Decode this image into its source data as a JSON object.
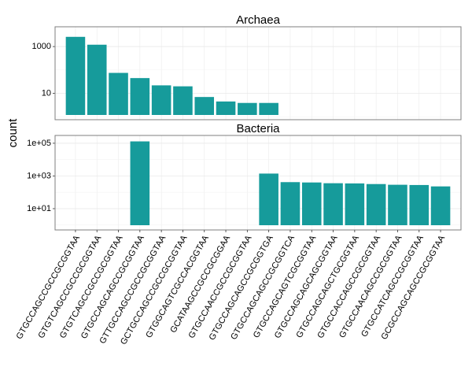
{
  "chart_data": {
    "type": "bar",
    "ylabel": "count",
    "xlabel": "",
    "y_scale": "log10",
    "bar_color": "#169B9B",
    "grid": true,
    "categories": [
      "GTGCCAGCCGCCGCGGTAA",
      "GTGTCAGCCGCCGCGGTAA",
      "GTGTCAGCCGCCGCGGTAA",
      "GTGCCAGCAGCCGCGGTAA",
      "GTTGCCAGCCGCCGCGGTAA",
      "GCTGCCAGCCGCCGCGGTAA",
      "GTGGCAGTCGCCACGGTAA",
      "GCATAAGCCGCCGCGGAA",
      "GTGCCAACCGCCGCGGTAA",
      "GTGCCAGCAGCCGCGGTGA",
      "GTGCCAGCAGCCGCGGTCA",
      "GTGCCAGCAGTCGCGGTAA",
      "GTGCCAGCAGCAGCGGTAA",
      "GTGCCAGCAGCTGCGGTAA",
      "GTGCCACCAGCCGCGGTAA",
      "GTGCCAACAGCCGCGGTAA",
      "GTGCCATCAGCCGCGGTAA",
      "GCGCCAGCAGCCGCGGTAA"
    ],
    "panels": [
      {
        "title": "Archaea",
        "y_ticks": [
          {
            "value": 10,
            "label": "10"
          },
          {
            "value": 1000,
            "label": "1000"
          }
        ],
        "ylim": [
          0.75,
          7000
        ],
        "values": [
          2600,
          1200,
          75,
          45,
          22,
          20,
          7,
          4.5,
          3.9,
          3.9,
          null,
          null,
          null,
          null,
          null,
          null,
          null,
          null
        ]
      },
      {
        "title": "Bacteria",
        "y_ticks": [
          {
            "value": 10,
            "label": "1e+01"
          },
          {
            "value": 1000,
            "label": "1e+03"
          },
          {
            "value": 100000,
            "label": "1e+05"
          }
        ],
        "ylim": [
          0.5,
          300000
        ],
        "values": [
          null,
          null,
          null,
          130000,
          null,
          null,
          null,
          null,
          null,
          1400,
          420,
          400,
          360,
          350,
          320,
          290,
          280,
          230
        ]
      }
    ]
  }
}
